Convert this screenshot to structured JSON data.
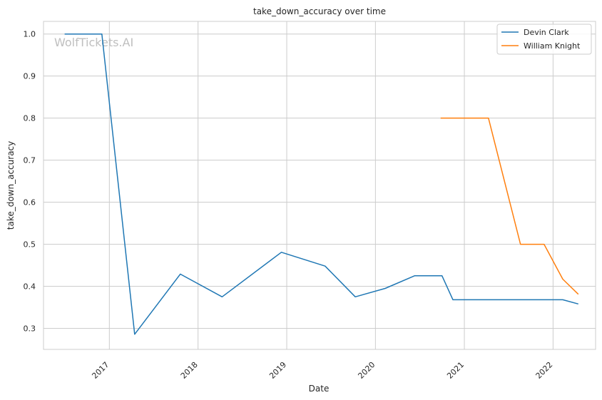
{
  "chart_data": {
    "type": "line",
    "title": "take_down_accuracy over time",
    "xlabel": "Date",
    "ylabel": "take_down_accuracy",
    "watermark": "WolfTickets.AI",
    "xlim": [
      "2016-04-05",
      "2022-06-25"
    ],
    "ylim": [
      0.25,
      1.03
    ],
    "x_ticks": [
      "2017-01-01",
      "2018-01-01",
      "2019-01-01",
      "2020-01-01",
      "2021-01-01",
      "2022-01-01"
    ],
    "x_tick_labels": [
      "2017",
      "2018",
      "2019",
      "2020",
      "2021",
      "2022"
    ],
    "y_ticks": [
      0.3,
      0.4,
      0.5,
      0.6,
      0.7,
      0.8,
      0.9,
      1.0
    ],
    "y_tick_labels": [
      "0.3",
      "0.4",
      "0.5",
      "0.6",
      "0.7",
      "0.8",
      "0.9",
      "1.0"
    ],
    "grid": true,
    "legend_position": "top-right",
    "series": [
      {
        "name": "Devin Clark",
        "color": "#1f77b4",
        "x": [
          "2016-07-01",
          "2016-12-01",
          "2017-04-15",
          "2017-10-20",
          "2018-04-10",
          "2018-12-10",
          "2019-06-08",
          "2019-10-10",
          "2020-02-10",
          "2020-06-10",
          "2020-10-01",
          "2020-11-15",
          "2021-04-10",
          "2021-08-20",
          "2021-11-25",
          "2022-02-10",
          "2022-04-15"
        ],
        "values": [
          1.0,
          1.0,
          0.286,
          0.429,
          0.375,
          0.481,
          0.448,
          0.375,
          0.395,
          0.425,
          0.425,
          0.368,
          0.368,
          0.368,
          0.368,
          0.368,
          0.358
        ]
      },
      {
        "name": "William Knight",
        "color": "#ff7f0e",
        "x": [
          "2020-09-25",
          "2021-04-10",
          "2021-08-20",
          "2021-11-25",
          "2022-02-10",
          "2022-04-15"
        ],
        "values": [
          0.8,
          0.8,
          0.5,
          0.5,
          0.417,
          0.381
        ]
      }
    ]
  }
}
